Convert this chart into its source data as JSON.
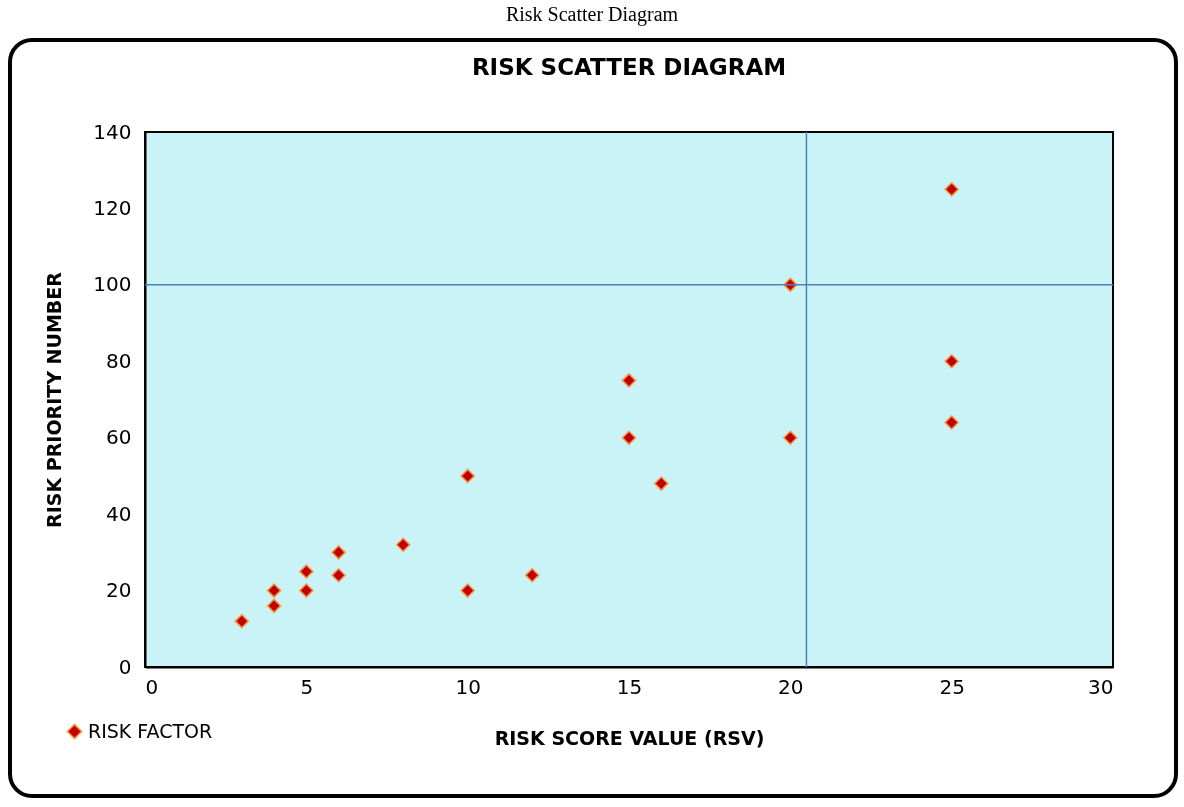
{
  "chart_data": {
    "type": "scatter",
    "title": "RISK SCATTER DIAGRAM",
    "xlabel": "RISK SCORE VALUE (RSV)",
    "ylabel": "RISK PRIORITY NUMBER",
    "annotations": [
      "Risk Scatter Diagram"
    ],
    "series": [
      {
        "name": "RISK FACTOR",
        "color": "#c00000",
        "x": [
          3,
          4,
          4,
          5,
          5,
          6,
          6,
          8,
          10,
          10,
          12,
          15,
          15,
          16,
          20,
          20,
          25,
          25,
          25
        ],
        "values": [
          12,
          20,
          16,
          25,
          20,
          30,
          24,
          32,
          50,
          20,
          24,
          75,
          60,
          48,
          100,
          60,
          125,
          80,
          64
        ]
      }
    ],
    "xlim": [
      0,
      30
    ],
    "xticks": [
      0,
      5,
      10,
      15,
      20,
      25,
      30
    ],
    "ylim": [
      0,
      140
    ],
    "yticks": [
      0,
      20,
      40,
      60,
      80,
      100,
      120,
      140
    ],
    "ref_lines": [
      {
        "axis": "y",
        "value": 100,
        "color": "#4f81bd"
      },
      {
        "axis": "x",
        "value": 20.5,
        "color": "#4f81bd"
      }
    ],
    "grid": false,
    "legend": "bottom left",
    "marker": "diamond"
  }
}
